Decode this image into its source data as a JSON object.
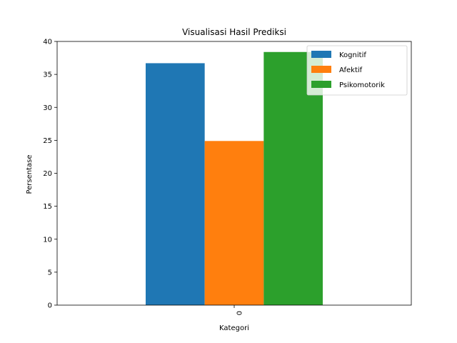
{
  "chart_data": {
    "type": "bar",
    "title": "Visualisasi Hasil Prediksi",
    "xlabel": "Kategori",
    "ylabel": "Persentase",
    "categories": [
      "0"
    ],
    "series": [
      {
        "name": "Kognitif",
        "values": [
          36.7
        ],
        "color": "#1f77b4"
      },
      {
        "name": "Afektif",
        "values": [
          24.9
        ],
        "color": "#ff7f0e"
      },
      {
        "name": "Psikomotorik",
        "values": [
          38.4
        ],
        "color": "#2ca02c"
      }
    ],
    "ylim": [
      0,
      40
    ],
    "yticks": [
      0,
      5,
      10,
      15,
      20,
      25,
      30,
      35,
      40
    ],
    "grid": false,
    "legend_position": "top-right"
  }
}
